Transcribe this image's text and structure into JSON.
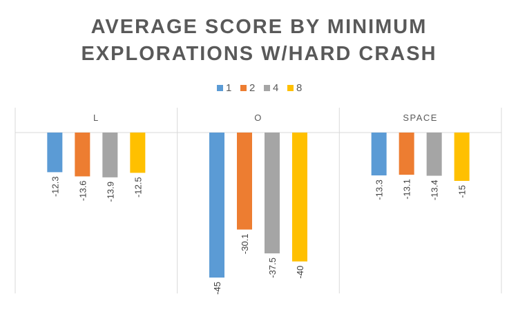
{
  "chart_data": {
    "type": "bar",
    "title_lines": [
      "AVERAGE SCORE BY MINIMUM",
      "EXPLORATIONS W/HARD CRASH"
    ],
    "categories": [
      "L",
      "O",
      "SPACE"
    ],
    "series": [
      {
        "name": "1",
        "color": "#5B9BD5",
        "values": [
          -12.3,
          -45,
          -13.3
        ]
      },
      {
        "name": "2",
        "color": "#ED7D31",
        "values": [
          -13.6,
          -30.1,
          -13.1
        ]
      },
      {
        "name": "4",
        "color": "#A5A5A5",
        "values": [
          -13.9,
          -37.5,
          -13.4
        ]
      },
      {
        "name": "8",
        "color": "#FFC000",
        "values": [
          -12.5,
          -40,
          -15
        ]
      }
    ],
    "data_labels": [
      [
        "-12.3",
        "-45",
        "-13.3"
      ],
      [
        "-13.6",
        "-30.1",
        "-13.1"
      ],
      [
        "-13.9",
        "-37.5",
        "-13.4"
      ],
      [
        "-12.5",
        "-40",
        "-15"
      ]
    ],
    "ylim": [
      -50,
      0
    ],
    "legend_position": "top",
    "category_label_position": "top",
    "grid": false
  }
}
